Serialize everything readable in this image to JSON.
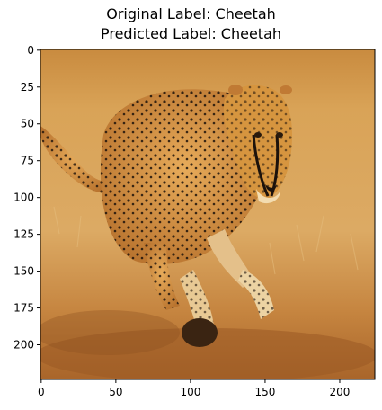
{
  "figure": {
    "title_line1": "Original Label: Cheetah",
    "title_line2": "Predicted Label: Cheetah",
    "image_subject": "cheetah running on dry savanna grass",
    "image_size": [
      224,
      224
    ]
  },
  "axes": {
    "x_ticks": [
      "0",
      "50",
      "100",
      "150",
      "200"
    ],
    "y_ticks": [
      "0",
      "25",
      "50",
      "75",
      "100",
      "125",
      "150",
      "175",
      "200"
    ],
    "x_range": [
      -0.5,
      223.5
    ],
    "y_range": [
      -0.5,
      223.5
    ],
    "y_inverted": true
  },
  "colors": {
    "sky_top": "#c98b3f",
    "grass_mid": "#d9a55e",
    "ground": "#a9652a",
    "fur": "#d99745",
    "fur_light": "#f3dcb0",
    "spots": "#1c120b"
  }
}
